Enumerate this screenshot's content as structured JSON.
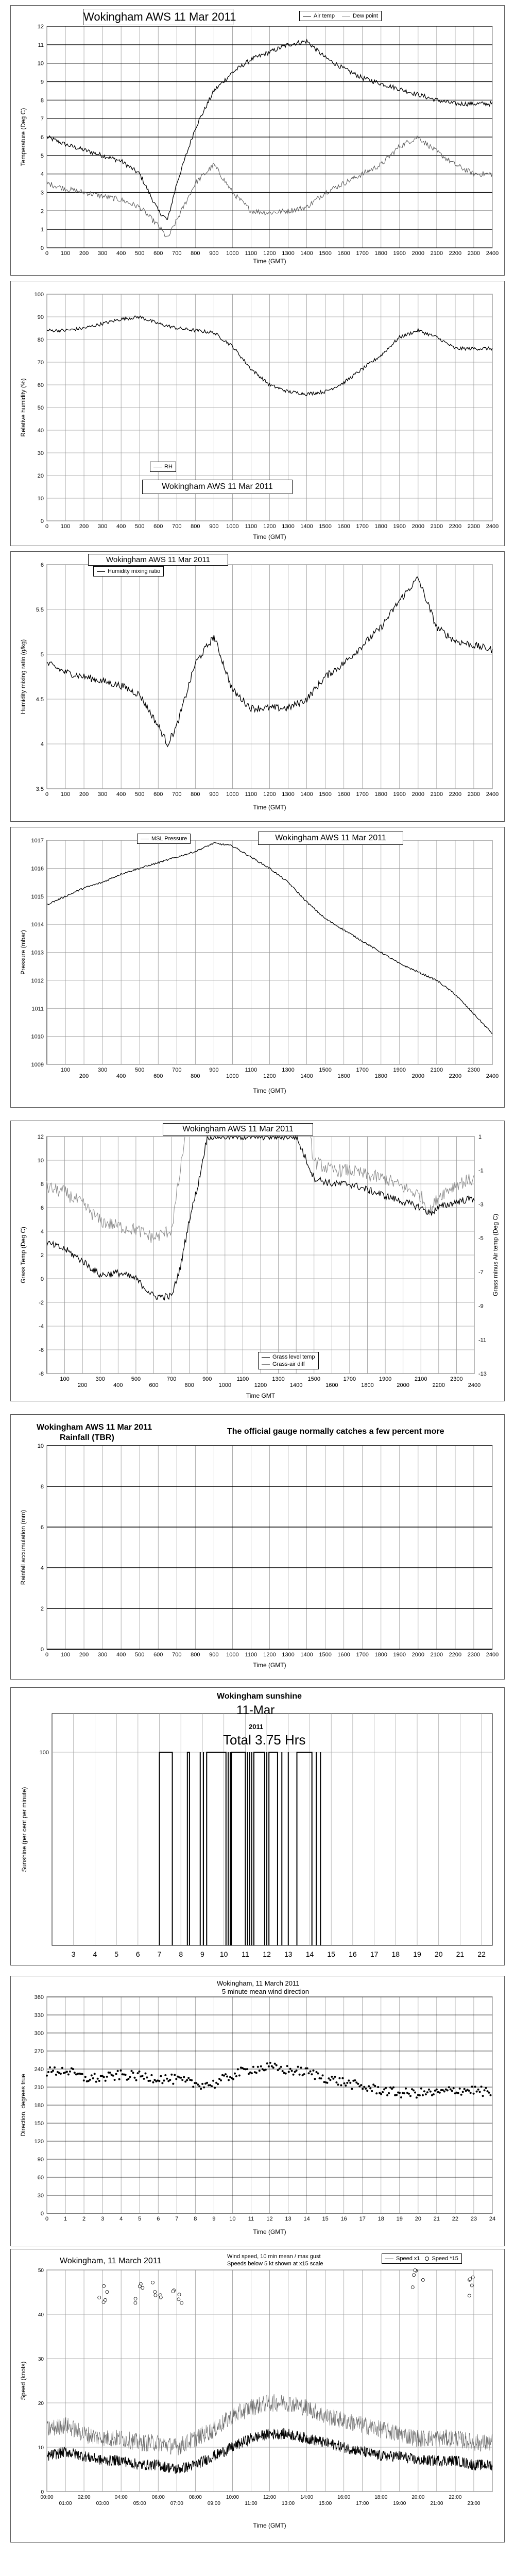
{
  "charts": {
    "temp": {
      "title": "Wokingham AWS 11 Mar 2011",
      "xlabel": "Time (GMT)",
      "ylabel": "Temperature (Deg C)",
      "legend": [
        "Air temp",
        "Dew point"
      ]
    },
    "rh": {
      "title": "Wokingham AWS 11 Mar 2011",
      "xlabel": "Time (GMT)",
      "ylabel": "Relative humidity (%)",
      "legend": [
        "RH"
      ]
    },
    "mix": {
      "title": "Wokingham AWS 11 Mar 2011",
      "xlabel": "Time (GMT)",
      "ylabel": "Humidity mixing ratio (g/kg)",
      "legend": [
        "Humidity mixing ratio"
      ]
    },
    "pres": {
      "title": "Wokingham AWS 11 Mar 2011",
      "xlabel": "Time (GMT)",
      "ylabel": "Pressure (mbar)",
      "legend": [
        "MSL Pressure"
      ]
    },
    "grass": {
      "title": "Wokingham AWS 11 Mar 2011",
      "xlabel": "Time GMT",
      "ylabel": "Grass Temp (Deg C)",
      "ylabel2": "Grass minus Air temp (Deg C)",
      "legend": [
        "Grass level temp",
        "Grass-air diff"
      ]
    },
    "rain": {
      "title": "Wokingham AWS 11 Mar 2011",
      "subtitle": "Rainfall (TBR)",
      "note": "The official gauge normally catches a few percent more",
      "xlabel": "Time (GMT)",
      "ylabel": "Rainfall accumulation (mm)"
    },
    "sun": {
      "title": "Wokingham sunshine",
      "date": "11-Mar",
      "year": "2011",
      "total": "Total 3.75 Hrs",
      "ylabel": "Sunshine (per cent per minute)"
    },
    "wdir": {
      "title": "Wokingham,  11 March 2011",
      "subtitle": "5 minute mean wind direction",
      "xlabel": "Time (GMT)",
      "ylabel": "Direction, degrees true"
    },
    "wspd": {
      "title": "Wokingham,  11 March 2011",
      "note1": "Wind speed, 10 min mean / max gust",
      "note2": "Speeds below 5 kt shown at x15 scale",
      "xlabel": "Time (GMT)",
      "ylabel": "Speed (knots)",
      "legend": [
        "Speed x1",
        "Speed *15"
      ]
    }
  },
  "chart_data": [
    {
      "type": "line",
      "x": [
        0,
        100,
        200,
        300,
        400,
        500,
        600,
        650,
        700,
        800,
        900,
        1000,
        1100,
        1200,
        1300,
        1400,
        1500,
        1600,
        1700,
        1800,
        1900,
        2000,
        2100,
        2200,
        2300,
        2400
      ],
      "series": [
        {
          "name": "Air temp",
          "values": [
            6,
            5.6,
            5.3,
            5,
            4.7,
            4,
            2,
            1.5,
            3.5,
            6.5,
            8.5,
            9.5,
            10.2,
            10.6,
            11,
            11.2,
            10.3,
            9.7,
            9.2,
            8.9,
            8.6,
            8.3,
            8,
            7.8,
            7.8,
            7.8
          ]
        },
        {
          "name": "Dew point",
          "values": [
            3.5,
            3.2,
            3,
            2.8,
            2.6,
            2.2,
            1.2,
            0.5,
            1.5,
            3.5,
            4.5,
            3,
            2,
            1.9,
            2,
            2.2,
            3,
            3.5,
            4,
            4.5,
            5.5,
            6,
            5.2,
            4.5,
            4,
            4
          ]
        }
      ],
      "xlim": [
        0,
        2400
      ],
      "ylim": [
        0,
        12
      ],
      "xticks": [
        0,
        100,
        200,
        300,
        400,
        500,
        600,
        700,
        800,
        900,
        1000,
        1100,
        1200,
        1300,
        1400,
        1500,
        1600,
        1700,
        1800,
        1900,
        2000,
        2100,
        2200,
        2300,
        2400
      ],
      "yticks": [
        0,
        1,
        2,
        3,
        4,
        5,
        6,
        7,
        8,
        9,
        10,
        11,
        12
      ],
      "grid": true,
      "legend_position": "top-right"
    },
    {
      "type": "line",
      "x": [
        0,
        100,
        200,
        300,
        400,
        500,
        600,
        700,
        800,
        900,
        1000,
        1100,
        1200,
        1300,
        1400,
        1500,
        1600,
        1700,
        1800,
        1900,
        2000,
        2100,
        2200,
        2300,
        2400
      ],
      "series": [
        {
          "name": "RH",
          "values": [
            84,
            84,
            85,
            87,
            89,
            90,
            87,
            85,
            84,
            83,
            77,
            67,
            60,
            57,
            56,
            57,
            61,
            67,
            73,
            81,
            84,
            81,
            76,
            76,
            76
          ]
        }
      ],
      "xlim": [
        0,
        2400
      ],
      "ylim": [
        0,
        100
      ],
      "xticks": [
        0,
        100,
        200,
        300,
        400,
        500,
        600,
        700,
        800,
        900,
        1000,
        1100,
        1200,
        1300,
        1400,
        1500,
        1600,
        1700,
        1800,
        1900,
        2000,
        2100,
        2200,
        2300,
        2400
      ],
      "yticks": [
        0,
        10,
        20,
        30,
        40,
        50,
        60,
        70,
        80,
        90,
        100
      ],
      "grid": true,
      "legend_position": "bottom-center"
    },
    {
      "type": "line",
      "x": [
        0,
        100,
        200,
        300,
        400,
        500,
        600,
        650,
        700,
        800,
        900,
        1000,
        1100,
        1200,
        1300,
        1400,
        1500,
        1600,
        1700,
        1800,
        1900,
        2000,
        2100,
        2200,
        2300,
        2400
      ],
      "series": [
        {
          "name": "Humidity mixing ratio",
          "values": [
            4.9,
            4.8,
            4.75,
            4.7,
            4.65,
            4.55,
            4.2,
            4,
            4.2,
            4.9,
            5.2,
            4.6,
            4.4,
            4.4,
            4.4,
            4.5,
            4.75,
            4.9,
            5.1,
            5.3,
            5.6,
            5.85,
            5.3,
            5.15,
            5.1,
            5.05
          ]
        }
      ],
      "xlim": [
        0,
        2400
      ],
      "ylim": [
        3.5,
        6
      ],
      "xticks": [
        0,
        100,
        200,
        300,
        400,
        500,
        600,
        700,
        800,
        900,
        1000,
        1100,
        1200,
        1300,
        1400,
        1500,
        1600,
        1700,
        1800,
        1900,
        2000,
        2100,
        2200,
        2300,
        2400
      ],
      "yticks": [
        3.5,
        4,
        4.5,
        5,
        5.5,
        6
      ],
      "grid": true,
      "legend_position": "top-left"
    },
    {
      "type": "line",
      "x": [
        0,
        100,
        200,
        300,
        400,
        500,
        600,
        700,
        800,
        900,
        1000,
        1100,
        1200,
        1300,
        1400,
        1500,
        1600,
        1700,
        1800,
        1900,
        2000,
        2100,
        2200,
        2300,
        2400
      ],
      "series": [
        {
          "name": "MSL Pressure",
          "values": [
            1014.7,
            1015,
            1015.3,
            1015.5,
            1015.8,
            1016,
            1016.2,
            1016.4,
            1016.6,
            1016.9,
            1016.8,
            1016.4,
            1016,
            1015.5,
            1014.8,
            1014.2,
            1013.8,
            1013.4,
            1013,
            1012.6,
            1012.3,
            1012,
            1011.5,
            1010.8,
            1010.1
          ]
        }
      ],
      "xlim": [
        0,
        2400
      ],
      "ylim": [
        1009,
        1017
      ],
      "xticks": [
        100,
        200,
        300,
        400,
        500,
        600,
        700,
        800,
        900,
        1000,
        1100,
        1200,
        1300,
        1400,
        1500,
        1600,
        1700,
        1800,
        1900,
        2000,
        2100,
        2200,
        2300,
        2400
      ],
      "yticks": [
        1009,
        1010,
        1011,
        1012,
        1013,
        1014,
        1015,
        1016,
        1017
      ],
      "grid": true,
      "legend_position": "top-left"
    },
    {
      "type": "line",
      "x": [
        0,
        100,
        200,
        300,
        400,
        500,
        600,
        700,
        750,
        800,
        850,
        900,
        1400,
        1500,
        1600,
        1700,
        1800,
        1900,
        2000,
        2100,
        2150,
        2200,
        2300,
        2400
      ],
      "series": [
        {
          "name": "Grass level temp",
          "values": [
            3,
            2.5,
            1.5,
            0.3,
            0.5,
            0,
            -1.5,
            -1.5,
            1,
            5,
            8,
            12,
            12,
            8.5,
            8,
            8,
            7.5,
            7,
            6.5,
            6,
            5.5,
            6,
            6.5,
            6.8
          ]
        },
        {
          "name": "Grass-air diff",
          "values": [
            -2,
            -2.3,
            -3,
            -4,
            -4.3,
            -4.5,
            -5,
            -4.5,
            -1,
            3,
            5,
            6,
            6,
            -0.5,
            -1,
            -1,
            -1.3,
            -1.5,
            -2,
            -2.5,
            -3.5,
            -2.5,
            -1.8,
            -1.5
          ]
        }
      ],
      "xlim": [
        0,
        2400
      ],
      "ylim": [
        -8,
        12
      ],
      "ylim2": [
        -13,
        1
      ],
      "xticks": [
        100,
        200,
        300,
        400,
        500,
        600,
        700,
        800,
        900,
        1000,
        1100,
        1200,
        1300,
        1400,
        1500,
        1600,
        1700,
        1800,
        1900,
        2000,
        2100,
        2200,
        2300,
        2400
      ],
      "yticks": [
        -8,
        -6,
        -4,
        -2,
        0,
        2,
        4,
        6,
        8,
        10,
        12
      ],
      "yticks2": [
        1,
        -1,
        -3,
        -5,
        -7,
        -9,
        -11,
        -13
      ],
      "grid": true,
      "legend_position": "bottom-right"
    },
    {
      "type": "line",
      "x": [
        0,
        2400
      ],
      "series": [
        {
          "values": [
            0,
            0
          ]
        }
      ],
      "xlim": [
        0,
        2400
      ],
      "ylim": [
        0,
        10
      ],
      "xticks": [
        0,
        100,
        200,
        300,
        400,
        500,
        600,
        700,
        800,
        900,
        1000,
        1100,
        1200,
        1300,
        1400,
        1500,
        1600,
        1700,
        1800,
        1900,
        2000,
        2100,
        2200,
        2300,
        2400
      ],
      "yticks": [
        0,
        2,
        4,
        6,
        8,
        10
      ],
      "grid": true
    },
    {
      "type": "area",
      "sun_segments": [
        [
          7,
          7.6
        ],
        [
          8.3,
          8.4
        ],
        [
          9.2,
          10.1
        ],
        [
          10.35,
          11
        ],
        [
          11.4,
          11.9
        ],
        [
          12.1,
          12.5
        ],
        [
          13.4,
          14.1
        ]
      ],
      "spikes": [
        8.9,
        9.05,
        10.2,
        10.3,
        11.1,
        11.2,
        11.3,
        12,
        12.7,
        13,
        14.3,
        14.5
      ],
      "xlim": [
        2,
        22.5
      ],
      "ylim": [
        0,
        120
      ],
      "xticks": [
        3,
        4,
        5,
        6,
        7,
        8,
        9,
        10,
        11,
        12,
        13,
        14,
        15,
        16,
        17,
        18,
        19,
        20,
        21,
        22
      ],
      "yticks": [
        100
      ],
      "grid": true
    },
    {
      "type": "scatter",
      "x": [
        0,
        1,
        2,
        3,
        4,
        5,
        6,
        7,
        8,
        9,
        10,
        11,
        12,
        13,
        14,
        15,
        16,
        17,
        18,
        19,
        20,
        21,
        22,
        23,
        24
      ],
      "values": [
        235,
        238,
        225,
        225,
        230,
        228,
        225,
        222,
        215,
        215,
        230,
        240,
        243,
        238,
        235,
        225,
        218,
        210,
        205,
        200,
        200,
        200,
        205,
        205,
        200
      ],
      "xlim": [
        0,
        24
      ],
      "ylim": [
        0,
        360
      ],
      "xticks": [
        0,
        1,
        2,
        3,
        4,
        5,
        6,
        7,
        8,
        9,
        10,
        11,
        12,
        13,
        14,
        15,
        16,
        17,
        18,
        19,
        20,
        21,
        22,
        23,
        24
      ],
      "yticks": [
        0,
        30,
        60,
        90,
        120,
        150,
        180,
        210,
        240,
        270,
        300,
        330,
        360
      ],
      "grid": true
    },
    {
      "type": "line",
      "x": [
        0,
        1,
        2,
        3,
        4,
        5,
        6,
        7,
        8,
        9,
        10,
        11,
        12,
        13,
        14,
        15,
        16,
        17,
        18,
        19,
        20,
        21,
        22,
        23,
        24
      ],
      "series": [
        {
          "name": "Speed x1",
          "values": [
            8,
            9,
            8,
            7,
            7,
            6,
            6,
            5,
            6,
            8,
            10,
            12,
            13,
            13,
            12,
            11,
            10,
            9,
            8,
            8,
            7,
            7,
            7,
            6,
            6
          ]
        },
        {
          "name": "Speed *15",
          "values": [
            null,
            null,
            null,
            45,
            null,
            45,
            45,
            45,
            null,
            null,
            null,
            null,
            null,
            null,
            null,
            null,
            null,
            null,
            null,
            null,
            48,
            null,
            null,
            46,
            null
          ]
        }
      ],
      "gust": [
        14,
        15,
        13,
        12,
        12,
        11,
        11,
        10,
        12,
        14,
        17,
        19,
        20,
        20,
        19,
        17,
        16,
        15,
        14,
        13,
        12,
        12,
        12,
        11,
        11
      ],
      "xlim": [
        0,
        24
      ],
      "ylim": [
        0,
        50
      ],
      "xticks": [
        0,
        1,
        2,
        3,
        4,
        5,
        6,
        7,
        8,
        9,
        10,
        11,
        12,
        13,
        14,
        15,
        16,
        17,
        18,
        19,
        20,
        21,
        22,
        23,
        24
      ],
      "xticklabels": [
        "00:00",
        "01:00",
        "02:00",
        "03:00",
        "04:00",
        "05:00",
        "06:00",
        "07:00",
        "08:00",
        "09:00",
        "10:00",
        "11:00",
        "12:00",
        "13:00",
        "14:00",
        "15:00",
        "16:00",
        "17:00",
        "18:00",
        "19:00",
        "20:00",
        "21:00",
        "22:00",
        "23:00",
        ""
      ],
      "yticks": [
        0,
        10,
        20,
        30,
        40,
        50
      ],
      "grid": true,
      "legend_position": "top-right"
    }
  ]
}
